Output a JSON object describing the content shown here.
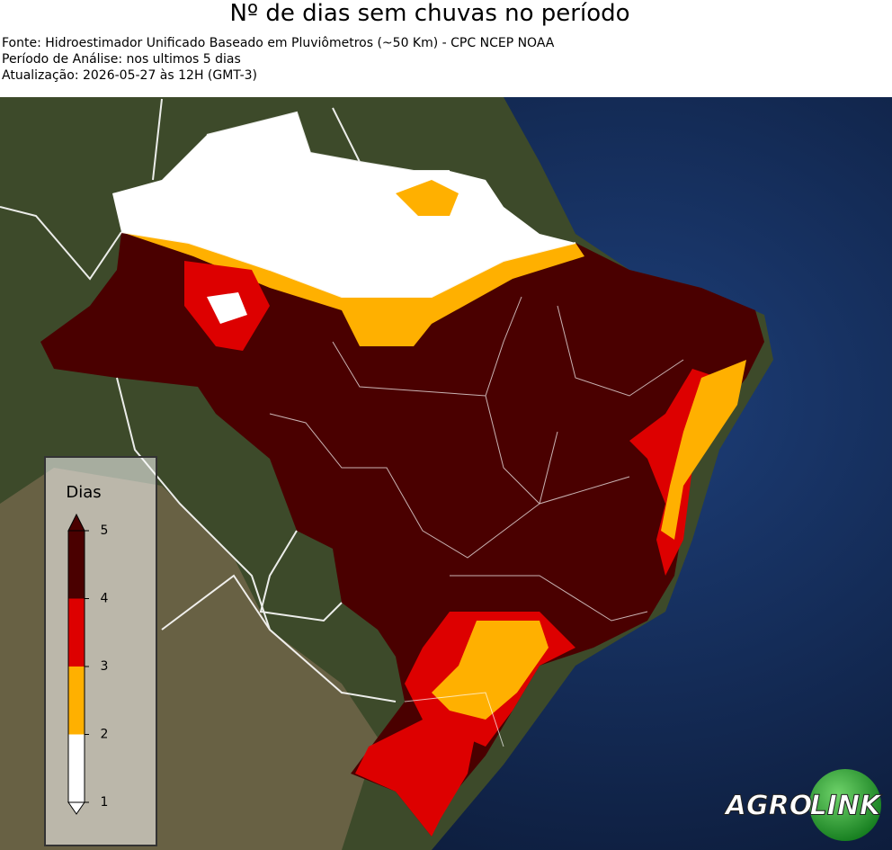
{
  "header": {
    "title": "Nº de dias sem chuvas no período",
    "lines": [
      "Fonte: Hidroestimador Unificado Baseado em Pluviômetros (~50 Km) - CPC NCEP NOAA",
      "Período de Análise: nos ultimos 5 dias",
      "Atualização: 2026-05-27 às 12H (GMT-3)"
    ]
  },
  "colorbar": {
    "label": "Dias",
    "lim": [
      1,
      5
    ],
    "ticks": [
      1,
      2,
      3,
      4,
      5
    ],
    "colors": [
      "#ffffff",
      "#ffb000",
      "#dd0000",
      "#4a0000"
    ]
  },
  "logo": {
    "left": "AGRO",
    "right": "LINK"
  }
}
